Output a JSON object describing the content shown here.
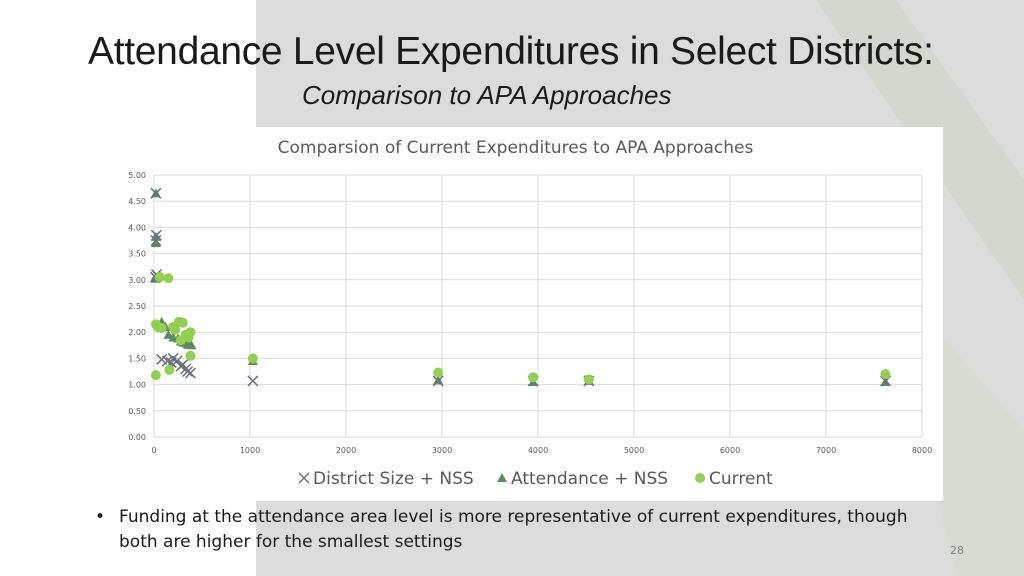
{
  "slide": {
    "title": "Attendance Level Expenditures in Select Districts:",
    "subtitle": "Comparison to APA Approaches",
    "bullet": "Funding at the attendance area level is more representative of current expenditures, though both are higher for the smallest settings",
    "page_number": "28"
  },
  "colors": {
    "district_size": "#6b7080",
    "attendance": "#5f8a5f",
    "current": "#92d050",
    "grid": "#d9d9d9",
    "background_panel": "#dcdcdc"
  },
  "chart_data": {
    "type": "scatter",
    "title": "Comparsion of Current Expenditures to APA Approaches",
    "xlabel": "",
    "ylabel": "",
    "xlim": [
      0,
      8000
    ],
    "ylim": [
      0,
      5
    ],
    "x_ticks": [
      "0",
      "1000",
      "2000",
      "3000",
      "4000",
      "5000",
      "6000",
      "7000",
      "8000"
    ],
    "y_ticks": [
      "0.00",
      "0.50",
      "1.00",
      "1.50",
      "2.00",
      "2.50",
      "3.00",
      "3.50",
      "4.00",
      "4.50",
      "5.00"
    ],
    "grid": true,
    "legend_position": "bottom",
    "series": [
      {
        "name": "District Size + NSS",
        "marker": "x",
        "points": [
          [
            20,
            4.65
          ],
          [
            25,
            3.85
          ],
          [
            20,
            3.75
          ],
          [
            25,
            3.1
          ],
          [
            15,
            3.05
          ],
          [
            80,
            1.48
          ],
          [
            140,
            1.45
          ],
          [
            180,
            1.42
          ],
          [
            200,
            1.5
          ],
          [
            240,
            1.45
          ],
          [
            280,
            1.35
          ],
          [
            300,
            1.38
          ],
          [
            330,
            1.3
          ],
          [
            350,
            1.25
          ],
          [
            380,
            1.22
          ],
          [
            1030,
            1.07
          ],
          [
            2960,
            1.07
          ],
          [
            3950,
            1.07
          ],
          [
            4530,
            1.07
          ],
          [
            7620,
            1.07
          ]
        ]
      },
      {
        "name": "Attendance + NSS",
        "marker": "triangle",
        "points": [
          [
            20,
            4.65
          ],
          [
            20,
            3.82
          ],
          [
            20,
            3.7
          ],
          [
            20,
            3.05
          ],
          [
            20,
            3.02
          ],
          [
            80,
            2.2
          ],
          [
            120,
            2.1
          ],
          [
            150,
            1.95
          ],
          [
            200,
            1.9
          ],
          [
            250,
            1.88
          ],
          [
            280,
            1.82
          ],
          [
            310,
            1.8
          ],
          [
            340,
            1.78
          ],
          [
            360,
            1.76
          ],
          [
            390,
            1.75
          ],
          [
            1030,
            1.45
          ],
          [
            2960,
            1.08
          ],
          [
            3950,
            1.05
          ],
          [
            4530,
            1.07
          ],
          [
            7620,
            1.05
          ]
        ]
      },
      {
        "name": "Current",
        "marker": "circle",
        "points": [
          [
            20,
            1.18
          ],
          [
            20,
            2.15
          ],
          [
            40,
            2.1
          ],
          [
            60,
            3.05
          ],
          [
            80,
            2.08
          ],
          [
            150,
            3.03
          ],
          [
            160,
            1.28
          ],
          [
            200,
            2.1
          ],
          [
            220,
            2.05
          ],
          [
            260,
            2.2
          ],
          [
            280,
            1.85
          ],
          [
            300,
            2.18
          ],
          [
            330,
            1.95
          ],
          [
            360,
            1.9
          ],
          [
            380,
            2.0
          ],
          [
            380,
            1.55
          ],
          [
            1030,
            1.5
          ],
          [
            2960,
            1.23
          ],
          [
            3950,
            1.14
          ],
          [
            4530,
            1.1
          ],
          [
            7620,
            1.2
          ]
        ]
      }
    ]
  }
}
